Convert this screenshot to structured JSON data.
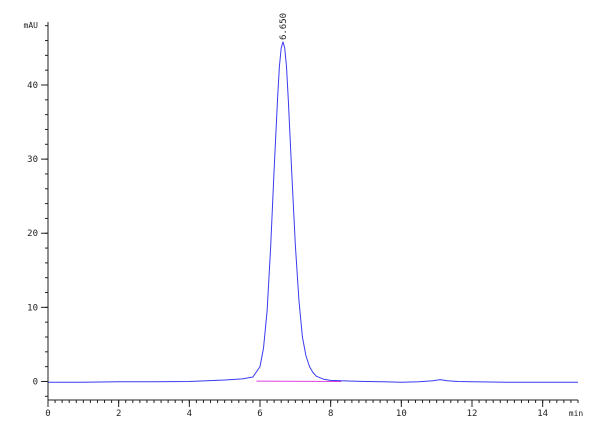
{
  "chart_data": {
    "type": "line",
    "xlabel": "min",
    "ylabel": "mAU",
    "xlim": [
      0,
      15
    ],
    "ylim": [
      -2.5,
      48.5
    ],
    "xticks": [
      0,
      2,
      4,
      6,
      8,
      10,
      12,
      14
    ],
    "yticks": [
      0,
      10,
      20,
      30,
      40
    ],
    "x_minor_step": 0.2,
    "y_minor_step": 2,
    "grid": false,
    "series": [
      {
        "color": "#3a3af0",
        "x": [
          0,
          1,
          2,
          3,
          4,
          4.5,
          5,
          5.5,
          5.8,
          6.0,
          6.1,
          6.2,
          6.3,
          6.4,
          6.5,
          6.55,
          6.6,
          6.65,
          6.7,
          6.75,
          6.8,
          6.9,
          7.0,
          7.1,
          7.2,
          7.3,
          7.4,
          7.5,
          7.6,
          7.8,
          8.0,
          8.3,
          8.6,
          9.0,
          9.5,
          10.0,
          10.5,
          10.9,
          11.1,
          11.3,
          11.6,
          12.0,
          13.0,
          14.0,
          15.0
        ],
        "y": [
          -0.1,
          -0.1,
          -0.05,
          -0.05,
          0.0,
          0.1,
          0.2,
          0.35,
          0.6,
          2.0,
          4.5,
          9.5,
          18.0,
          28.5,
          38.5,
          42.5,
          45.0,
          45.8,
          45.0,
          42.5,
          38.0,
          28.0,
          18.5,
          11.0,
          6.0,
          3.5,
          2.0,
          1.2,
          0.7,
          0.3,
          0.15,
          0.1,
          0.05,
          0.0,
          -0.05,
          -0.1,
          -0.05,
          0.1,
          0.25,
          0.1,
          0.0,
          -0.05,
          -0.1,
          -0.1,
          -0.1
        ]
      }
    ],
    "baseline": {
      "color": "#e040e0",
      "x": [
        5.9,
        8.3
      ],
      "y": [
        0.05,
        0.0
      ]
    },
    "annotations": [
      {
        "text": "6.650",
        "x": 6.65,
        "y": 45.8
      }
    ]
  }
}
